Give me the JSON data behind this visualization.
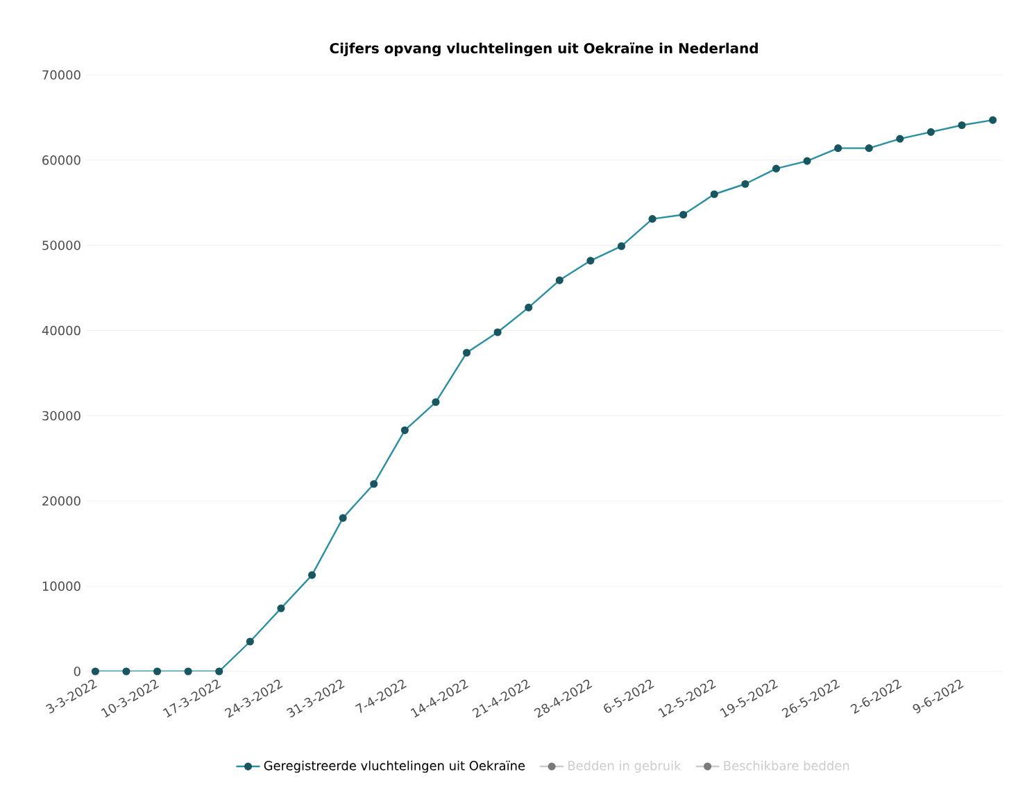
{
  "chart_data": {
    "type": "line",
    "title": "Cijfers opvang vluchtelingen uit Oekraïne in Nederland",
    "categories": [
      "3-3-2022",
      null,
      "10-3-2022",
      null,
      "17-3-2022",
      null,
      "24-3-2022",
      null,
      "31-3-2022",
      null,
      "7-4-2022",
      null,
      "14-4-2022",
      null,
      "21-4-2022",
      null,
      "28-4-2022",
      null,
      "6-5-2022",
      null,
      "12-5-2022",
      null,
      "19-5-2022",
      null,
      "26-5-2022",
      null,
      "2-6-2022",
      null,
      "9-6-2022",
      null
    ],
    "series": [
      {
        "name": "Geregistreerde vluchtelingen uit Oekraïne",
        "color": "#2a8fa0",
        "values": [
          0,
          0,
          0,
          0,
          0,
          3500,
          7400,
          11300,
          18000,
          22000,
          28300,
          31600,
          37400,
          39800,
          42700,
          45900,
          48200,
          49900,
          53100,
          53600,
          56000,
          57200,
          59000,
          59900,
          61400,
          61400,
          62500,
          63300,
          64100,
          64700
        ]
      },
      {
        "name": "Bedden in gebruik",
        "color": "#cccccc",
        "values": [
          null,
          null,
          null,
          null,
          null,
          null,
          null,
          null,
          null,
          null,
          null,
          null,
          null,
          null,
          null,
          null,
          null,
          null,
          null,
          null,
          null,
          null,
          null,
          null,
          null,
          null,
          null,
          null,
          null,
          null
        ]
      },
      {
        "name": "Beschikbare bedden",
        "color": "#cccccc",
        "values": [
          null,
          null,
          null,
          null,
          null,
          null,
          null,
          null,
          null,
          null,
          null,
          null,
          null,
          null,
          null,
          null,
          null,
          null,
          null,
          null,
          null,
          null,
          null,
          null,
          null,
          null,
          null,
          null,
          null,
          null
        ]
      }
    ],
    "ylim": [
      0,
      70000
    ],
    "yticks": [
      0,
      10000,
      20000,
      30000,
      40000,
      50000,
      60000,
      70000
    ],
    "grid": "y",
    "legend": "bottom",
    "marker": "circle",
    "line_style": "solid"
  }
}
